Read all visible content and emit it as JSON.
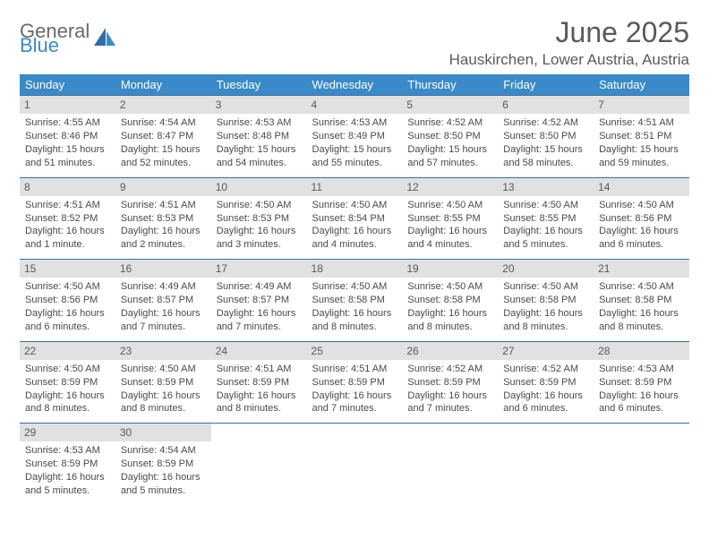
{
  "logo": {
    "top": "General",
    "bottom": "Blue"
  },
  "title": "June 2025",
  "location": "Hauskirchen, Lower Austria, Austria",
  "colors": {
    "header_bg": "#3a8ac9",
    "header_text": "#ffffff",
    "row_border": "#3a6fa5",
    "daynum_bg": "#e1e1e1",
    "body_text": "#4a4a4a",
    "title_text": "#5a5a5a",
    "logo_gray": "#6a6a6a",
    "logo_blue": "#3a8ac9"
  },
  "day_headers": [
    "Sunday",
    "Monday",
    "Tuesday",
    "Wednesday",
    "Thursday",
    "Friday",
    "Saturday"
  ],
  "weeks": [
    [
      {
        "n": "1",
        "sr": "Sunrise: 4:55 AM",
        "ss": "Sunset: 8:46 PM",
        "d1": "Daylight: 15 hours",
        "d2": "and 51 minutes."
      },
      {
        "n": "2",
        "sr": "Sunrise: 4:54 AM",
        "ss": "Sunset: 8:47 PM",
        "d1": "Daylight: 15 hours",
        "d2": "and 52 minutes."
      },
      {
        "n": "3",
        "sr": "Sunrise: 4:53 AM",
        "ss": "Sunset: 8:48 PM",
        "d1": "Daylight: 15 hours",
        "d2": "and 54 minutes."
      },
      {
        "n": "4",
        "sr": "Sunrise: 4:53 AM",
        "ss": "Sunset: 8:49 PM",
        "d1": "Daylight: 15 hours",
        "d2": "and 55 minutes."
      },
      {
        "n": "5",
        "sr": "Sunrise: 4:52 AM",
        "ss": "Sunset: 8:50 PM",
        "d1": "Daylight: 15 hours",
        "d2": "and 57 minutes."
      },
      {
        "n": "6",
        "sr": "Sunrise: 4:52 AM",
        "ss": "Sunset: 8:50 PM",
        "d1": "Daylight: 15 hours",
        "d2": "and 58 minutes."
      },
      {
        "n": "7",
        "sr": "Sunrise: 4:51 AM",
        "ss": "Sunset: 8:51 PM",
        "d1": "Daylight: 15 hours",
        "d2": "and 59 minutes."
      }
    ],
    [
      {
        "n": "8",
        "sr": "Sunrise: 4:51 AM",
        "ss": "Sunset: 8:52 PM",
        "d1": "Daylight: 16 hours",
        "d2": "and 1 minute."
      },
      {
        "n": "9",
        "sr": "Sunrise: 4:51 AM",
        "ss": "Sunset: 8:53 PM",
        "d1": "Daylight: 16 hours",
        "d2": "and 2 minutes."
      },
      {
        "n": "10",
        "sr": "Sunrise: 4:50 AM",
        "ss": "Sunset: 8:53 PM",
        "d1": "Daylight: 16 hours",
        "d2": "and 3 minutes."
      },
      {
        "n": "11",
        "sr": "Sunrise: 4:50 AM",
        "ss": "Sunset: 8:54 PM",
        "d1": "Daylight: 16 hours",
        "d2": "and 4 minutes."
      },
      {
        "n": "12",
        "sr": "Sunrise: 4:50 AM",
        "ss": "Sunset: 8:55 PM",
        "d1": "Daylight: 16 hours",
        "d2": "and 4 minutes."
      },
      {
        "n": "13",
        "sr": "Sunrise: 4:50 AM",
        "ss": "Sunset: 8:55 PM",
        "d1": "Daylight: 16 hours",
        "d2": "and 5 minutes."
      },
      {
        "n": "14",
        "sr": "Sunrise: 4:50 AM",
        "ss": "Sunset: 8:56 PM",
        "d1": "Daylight: 16 hours",
        "d2": "and 6 minutes."
      }
    ],
    [
      {
        "n": "15",
        "sr": "Sunrise: 4:50 AM",
        "ss": "Sunset: 8:56 PM",
        "d1": "Daylight: 16 hours",
        "d2": "and 6 minutes."
      },
      {
        "n": "16",
        "sr": "Sunrise: 4:49 AM",
        "ss": "Sunset: 8:57 PM",
        "d1": "Daylight: 16 hours",
        "d2": "and 7 minutes."
      },
      {
        "n": "17",
        "sr": "Sunrise: 4:49 AM",
        "ss": "Sunset: 8:57 PM",
        "d1": "Daylight: 16 hours",
        "d2": "and 7 minutes."
      },
      {
        "n": "18",
        "sr": "Sunrise: 4:50 AM",
        "ss": "Sunset: 8:58 PM",
        "d1": "Daylight: 16 hours",
        "d2": "and 8 minutes."
      },
      {
        "n": "19",
        "sr": "Sunrise: 4:50 AM",
        "ss": "Sunset: 8:58 PM",
        "d1": "Daylight: 16 hours",
        "d2": "and 8 minutes."
      },
      {
        "n": "20",
        "sr": "Sunrise: 4:50 AM",
        "ss": "Sunset: 8:58 PM",
        "d1": "Daylight: 16 hours",
        "d2": "and 8 minutes."
      },
      {
        "n": "21",
        "sr": "Sunrise: 4:50 AM",
        "ss": "Sunset: 8:58 PM",
        "d1": "Daylight: 16 hours",
        "d2": "and 8 minutes."
      }
    ],
    [
      {
        "n": "22",
        "sr": "Sunrise: 4:50 AM",
        "ss": "Sunset: 8:59 PM",
        "d1": "Daylight: 16 hours",
        "d2": "and 8 minutes."
      },
      {
        "n": "23",
        "sr": "Sunrise: 4:50 AM",
        "ss": "Sunset: 8:59 PM",
        "d1": "Daylight: 16 hours",
        "d2": "and 8 minutes."
      },
      {
        "n": "24",
        "sr": "Sunrise: 4:51 AM",
        "ss": "Sunset: 8:59 PM",
        "d1": "Daylight: 16 hours",
        "d2": "and 8 minutes."
      },
      {
        "n": "25",
        "sr": "Sunrise: 4:51 AM",
        "ss": "Sunset: 8:59 PM",
        "d1": "Daylight: 16 hours",
        "d2": "and 7 minutes."
      },
      {
        "n": "26",
        "sr": "Sunrise: 4:52 AM",
        "ss": "Sunset: 8:59 PM",
        "d1": "Daylight: 16 hours",
        "d2": "and 7 minutes."
      },
      {
        "n": "27",
        "sr": "Sunrise: 4:52 AM",
        "ss": "Sunset: 8:59 PM",
        "d1": "Daylight: 16 hours",
        "d2": "and 6 minutes."
      },
      {
        "n": "28",
        "sr": "Sunrise: 4:53 AM",
        "ss": "Sunset: 8:59 PM",
        "d1": "Daylight: 16 hours",
        "d2": "and 6 minutes."
      }
    ],
    [
      {
        "n": "29",
        "sr": "Sunrise: 4:53 AM",
        "ss": "Sunset: 8:59 PM",
        "d1": "Daylight: 16 hours",
        "d2": "and 5 minutes."
      },
      {
        "n": "30",
        "sr": "Sunrise: 4:54 AM",
        "ss": "Sunset: 8:59 PM",
        "d1": "Daylight: 16 hours",
        "d2": "and 5 minutes."
      },
      null,
      null,
      null,
      null,
      null
    ]
  ]
}
